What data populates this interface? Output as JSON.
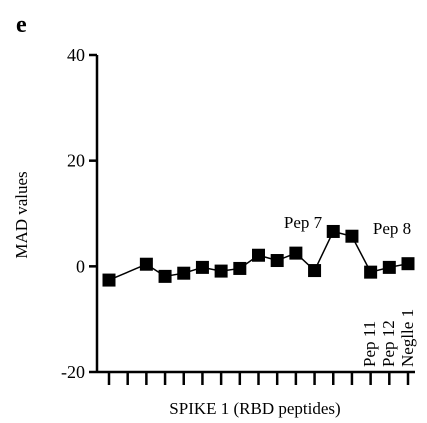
{
  "chart_data": {
    "type": "line",
    "panel_label": "e",
    "y_label": "MAD values",
    "x_label": "SPIKE 1 (RBD peptides)",
    "x": [
      1,
      3,
      4,
      5,
      6,
      7,
      8,
      9,
      10,
      11,
      12,
      13,
      14,
      15,
      16,
      17
    ],
    "values": [
      -2.6,
      0.4,
      -1.9,
      -1.3,
      -0.2,
      -0.9,
      -0.4,
      2.1,
      1.1,
      2.5,
      -0.8,
      6.6,
      5.7,
      -1.1,
      -0.2,
      0.5
    ],
    "color": "#000000",
    "marker": "square",
    "xlim": [
      1,
      17
    ],
    "xticks": [
      1,
      2,
      3,
      4,
      5,
      6,
      7,
      8,
      9,
      10,
      11,
      12,
      13,
      14,
      15,
      16,
      17
    ],
    "ylim": [
      -20,
      40
    ],
    "yticks": [
      -20,
      0,
      20,
      40
    ],
    "annotations": [
      "Pep 7",
      "Pep 8",
      "Pep 11",
      "Pep 12",
      "Neglle 1"
    ]
  }
}
